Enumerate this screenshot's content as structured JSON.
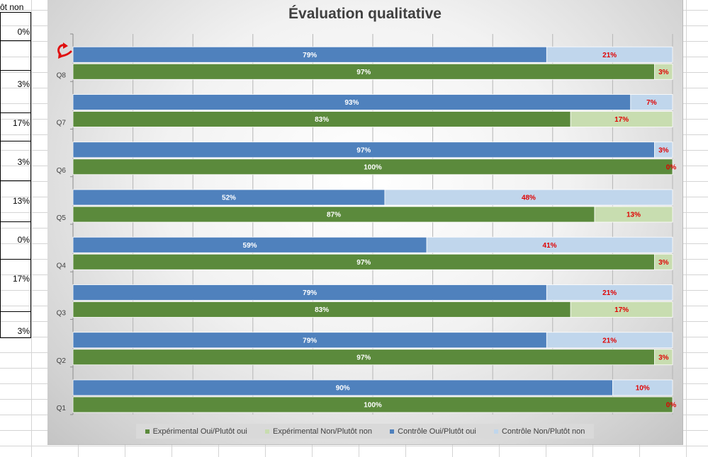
{
  "sheet": {
    "header_fragment": "ôt non",
    "cells": [
      "0%",
      "3%",
      "17%",
      "3%",
      "13%",
      "0%",
      "17%",
      "3%"
    ]
  },
  "colors": {
    "exp_yes": "#5b8a3c",
    "exp_no": "#c8ddb0",
    "ctl_yes": "#4f81bd",
    "ctl_no": "#c0d6ec",
    "label_red": "#e00000",
    "label_white": "#ffffff",
    "arrow": "#e01010"
  },
  "chart_data": {
    "type": "bar",
    "orientation": "horizontal",
    "stacked": "100%",
    "title": "Évaluation qualitative",
    "categories": [
      "Q1",
      "Q2",
      "Q3",
      "Q4",
      "Q5",
      "Q6",
      "Q7",
      "Q8"
    ],
    "xlim": [
      0,
      100
    ],
    "grid": true,
    "legend_position": "bottom",
    "series": [
      {
        "name": "Expérimental Oui/Plutôt oui",
        "values": [
          100,
          97,
          83,
          97,
          87,
          100,
          83,
          97
        ],
        "labels": [
          "100%",
          "97%",
          "83%",
          "97%",
          "87%",
          "100%",
          "83%",
          "97%"
        ]
      },
      {
        "name": "Expérimental Non/Plutôt non",
        "values": [
          0,
          3,
          17,
          3,
          13,
          0,
          17,
          3
        ],
        "labels": [
          "0%",
          "3%",
          "17%",
          "3%",
          "13%",
          "0%",
          "17%",
          "3%"
        ]
      },
      {
        "name": "Contrôle Oui/Plutôt oui",
        "values": [
          90,
          79,
          79,
          59,
          52,
          97,
          93,
          79
        ],
        "labels": [
          "90%",
          "79%",
          "79%",
          "59%",
          "52%",
          "97%",
          "93%",
          "79%"
        ]
      },
      {
        "name": "Contrôle Non/Plutôt non",
        "values": [
          10,
          21,
          21,
          41,
          48,
          3,
          7,
          21
        ],
        "labels": [
          "10%",
          "21%",
          "21%",
          "41%",
          "48%",
          "3%",
          "7%",
          "21%"
        ]
      }
    ]
  }
}
